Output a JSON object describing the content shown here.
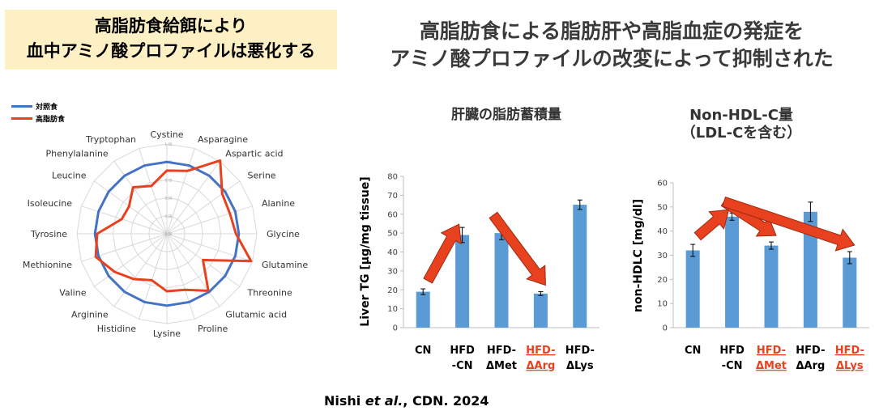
{
  "headline_left": [
    "高脂肪食給餌により",
    "血中アミノ酸プロファイルは悪化する"
  ],
  "headline_right": [
    "高脂肪食による脂肪肝や高脂血症の発症を",
    "アミノ酸プロファイルの改変によって抑制された"
  ],
  "citation": {
    "author": "Nishi",
    "etal": "et al.",
    "rest": ", CDN. 2024"
  },
  "colors": {
    "control": "#4472c4",
    "hfd": "#e8411f",
    "bar": "#5b9bd5",
    "arrow": "#e8411f",
    "highlight": "#e8411f"
  },
  "chart_data": [
    {
      "type": "radar",
      "legend": [
        {
          "name": "対照食",
          "color": "#4472c4"
        },
        {
          "name": "高脂肪食",
          "color": "#e8411f"
        }
      ],
      "categories": [
        "Cystine",
        "Asparagine",
        "Aspartic acid",
        "Serine",
        "Alanine",
        "Glycine",
        "Glutamine",
        "Threonine",
        "Glutamic acid",
        "Proline",
        "Lysine",
        "Histidine",
        "Arginine",
        "Valine",
        "Methionine",
        "Tyrosine",
        "Isoleucine",
        "Leucine",
        "Phenylalanine",
        "Tryptophan"
      ],
      "ticks": [
        "0.00",
        "0.25",
        "0.50",
        "0.75",
        "1.00",
        "1.25"
      ],
      "rmax": 1.25,
      "series": [
        {
          "name": "対照食",
          "values": [
            1.0,
            1.0,
            1.0,
            1.0,
            1.0,
            1.0,
            1.0,
            1.0,
            1.0,
            1.0,
            1.0,
            1.0,
            1.0,
            1.0,
            1.0,
            1.0,
            1.0,
            1.0,
            1.0,
            1.0
          ]
        },
        {
          "name": "高脂肪食",
          "values": [
            0.88,
            0.92,
            1.26,
            0.95,
            0.92,
            0.96,
            1.23,
            0.62,
            0.98,
            0.82,
            0.8,
            0.68,
            0.78,
            0.9,
            1.04,
            0.97,
            0.66,
            0.65,
            0.8,
            0.7
          ]
        }
      ]
    },
    {
      "type": "bar",
      "title": "肝臓の脂肪蓄積量",
      "ylabel": "Liver TG [μg/mg tissue]",
      "ylim": [
        0,
        80
      ],
      "yticks": [
        0,
        10,
        20,
        30,
        40,
        50,
        60,
        70,
        80
      ],
      "categories": [
        {
          "line1": "CN",
          "line2": "",
          "highlight": false
        },
        {
          "line1": "HFD",
          "line2": "-CN",
          "highlight": false
        },
        {
          "line1": "HFD-",
          "line2": "ΔMet",
          "highlight": false
        },
        {
          "line1": "HFD-",
          "line2": "ΔArg",
          "highlight": true
        },
        {
          "line1": "HFD-",
          "line2": "ΔLys",
          "highlight": false
        }
      ],
      "values": [
        19,
        49,
        50,
        18,
        65
      ],
      "errors": [
        1.5,
        4,
        3.5,
        1,
        2.5
      ],
      "arrows": [
        [
          0,
          1
        ],
        [
          2,
          3
        ]
      ]
    },
    {
      "type": "bar",
      "title_lines": [
        "Non-HDL-C量",
        "（LDL-Cを含む）"
      ],
      "ylabel": "non-HDLC [mg/dl]",
      "ylim": [
        0,
        60
      ],
      "yticks": [
        0,
        10,
        20,
        30,
        40,
        50,
        60
      ],
      "categories": [
        {
          "line1": "CN",
          "line2": "",
          "highlight": false
        },
        {
          "line1": "HFD",
          "line2": "-CN",
          "highlight": false
        },
        {
          "line1": "HFD-",
          "line2": "ΔMet",
          "highlight": true
        },
        {
          "line1": "HFD-",
          "line2": "ΔArg",
          "highlight": false
        },
        {
          "line1": "HFD-",
          "line2": "ΔLys",
          "highlight": true
        }
      ],
      "values": [
        32,
        46,
        34,
        48,
        29
      ],
      "errors": [
        2.5,
        1.5,
        1.5,
        4,
        2.5
      ],
      "arrows": [
        [
          0,
          1
        ],
        [
          1,
          2
        ],
        [
          1,
          4
        ]
      ]
    }
  ]
}
